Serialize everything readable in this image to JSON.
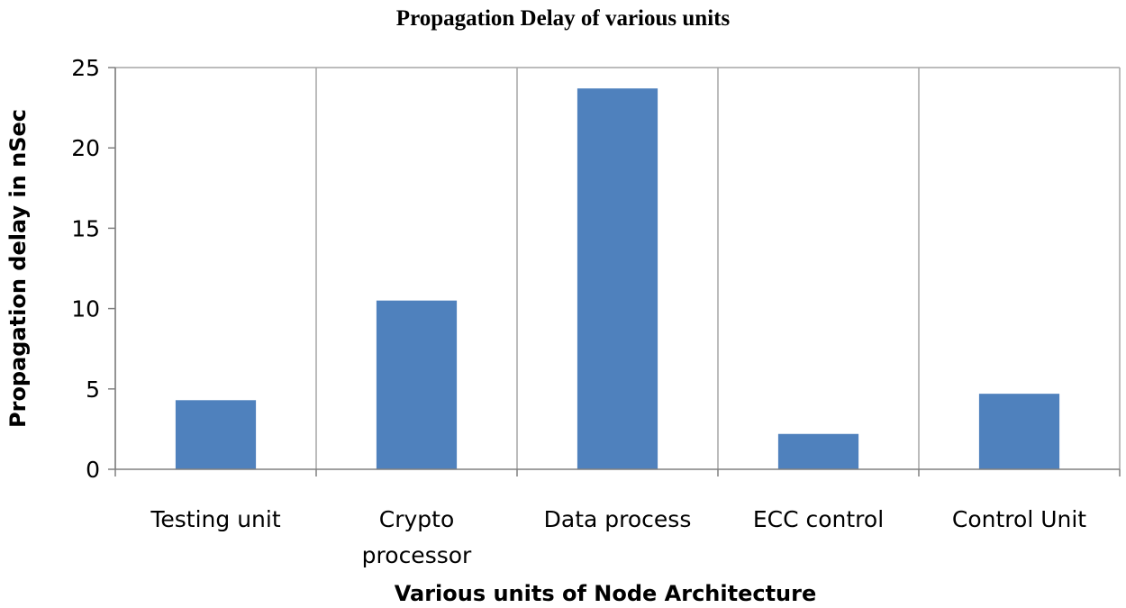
{
  "chart_data": {
    "type": "bar",
    "title": "Propagation Delay of various units",
    "xlabel": "Various units of Node Architecture",
    "ylabel": "Propagation delay in nSec",
    "categories": [
      "Testing unit",
      "Crypto processor",
      "Data process",
      "ECC control",
      "Control Unit"
    ],
    "category_lines": [
      [
        "Testing unit"
      ],
      [
        "Crypto",
        "processor"
      ],
      [
        "Data process"
      ],
      [
        "ECC control"
      ],
      [
        "Control Unit"
      ]
    ],
    "values": [
      4.3,
      10.5,
      23.7,
      2.2,
      4.7
    ],
    "ylim": [
      0,
      25
    ],
    "yticks": [
      0,
      5,
      10,
      15,
      20,
      25
    ],
    "grid": "vertical-category-lines",
    "legend": "none",
    "bar_color": "#4f81bd",
    "grid_color": "#a6a6a6"
  }
}
